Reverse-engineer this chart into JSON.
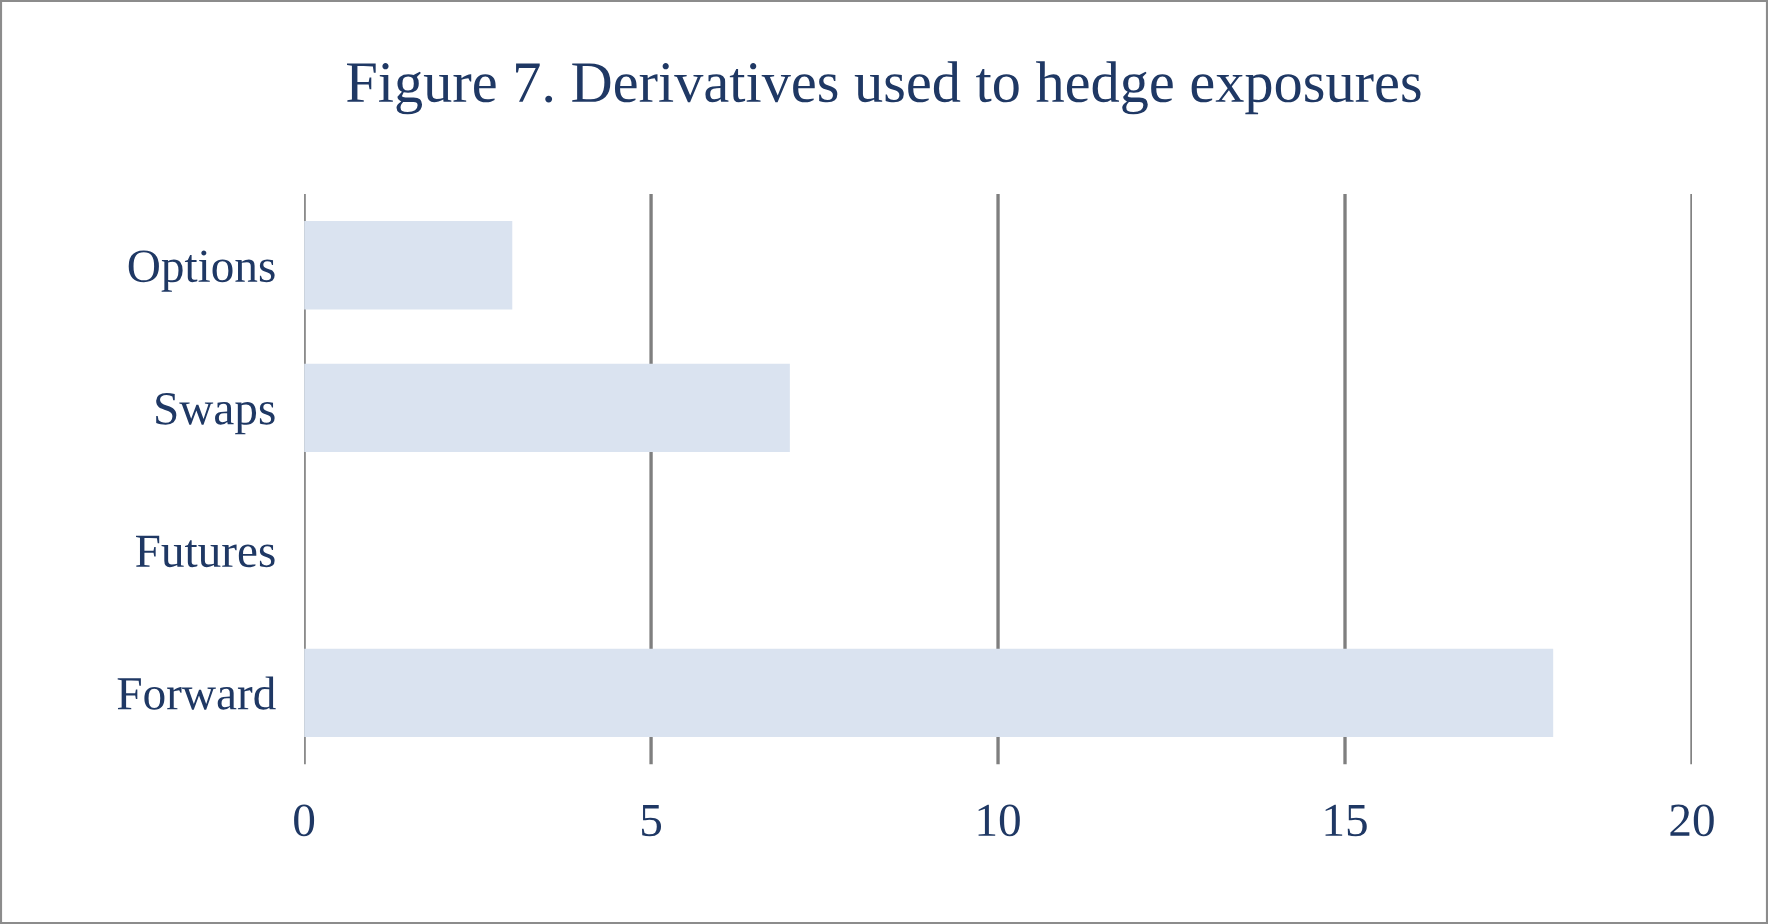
{
  "chart_data": {
    "type": "bar",
    "orientation": "horizontal",
    "title": "Figure 7. Derivatives used to hedge exposures",
    "categories": [
      "Options",
      "Swaps",
      "Futures",
      "Forward"
    ],
    "values": [
      3,
      7,
      0,
      18
    ],
    "color": "#dae3f0",
    "xlim": [
      0,
      20
    ],
    "xticks": [
      0,
      5,
      10,
      15,
      20
    ],
    "grid": "x",
    "legend": false
  }
}
